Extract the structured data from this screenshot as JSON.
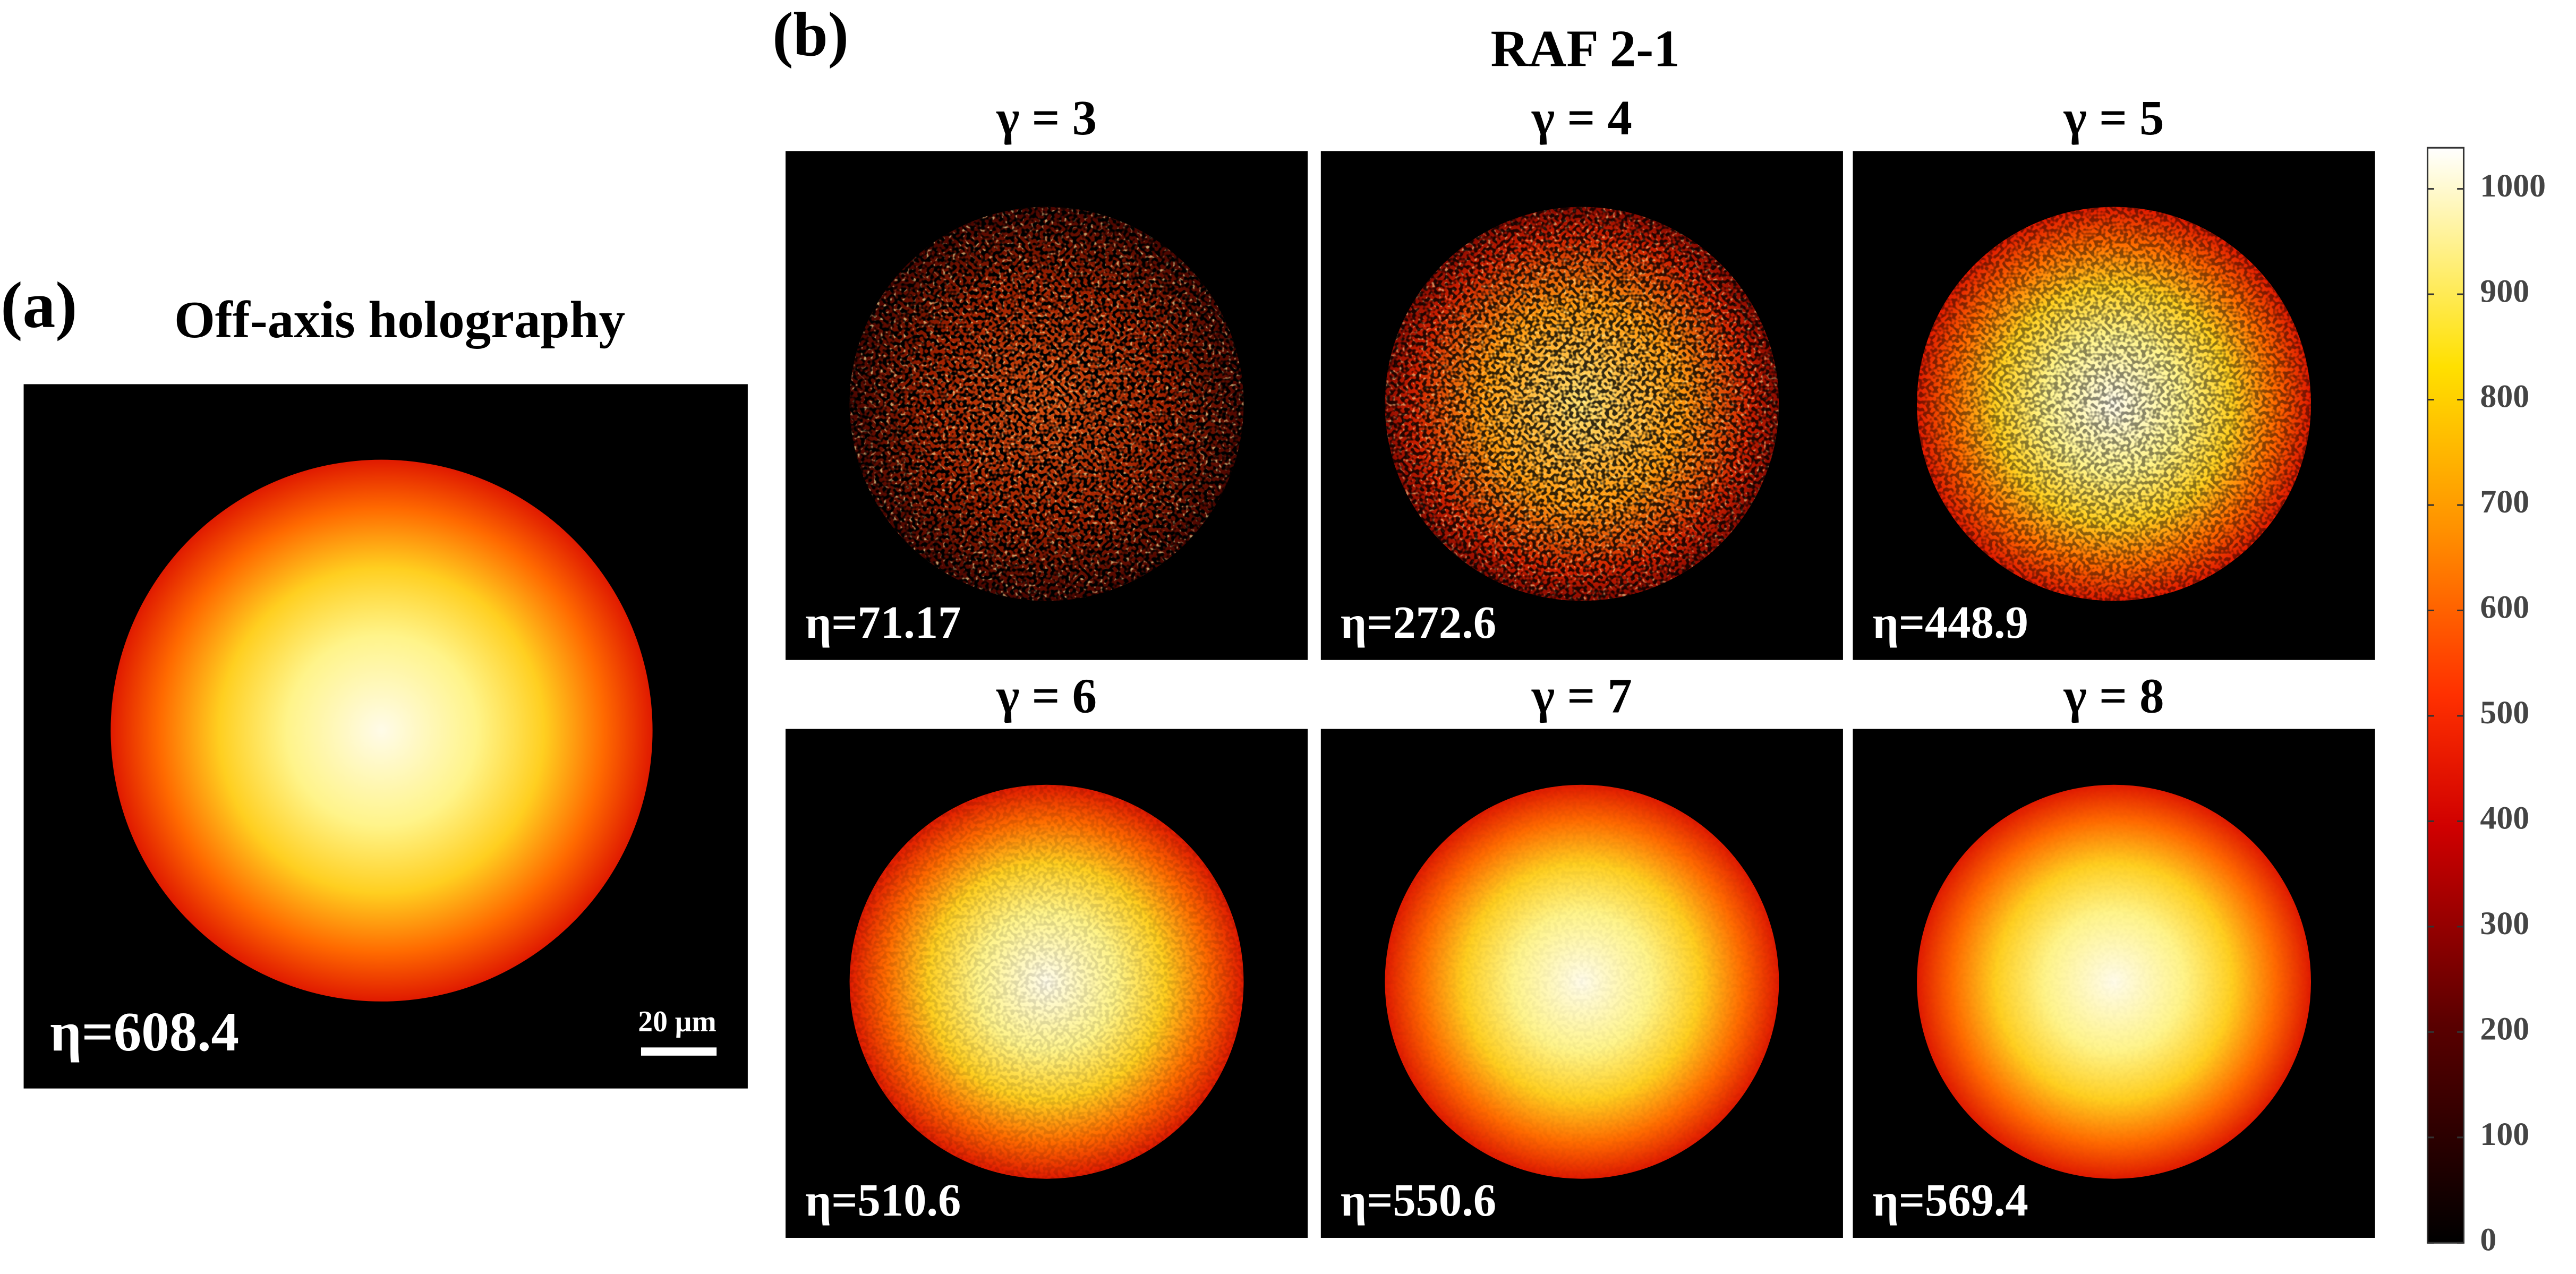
{
  "panel_a": {
    "label": "(a)",
    "title": "Off-axis holography",
    "eta": "η=608.4",
    "scalebar": "20 μm"
  },
  "panel_b": {
    "label": "(b)",
    "title": "RAF 2-1",
    "panels": [
      {
        "title": "γ = 3",
        "eta": "η=71.17"
      },
      {
        "title": "γ = 4",
        "eta": "η=272.6"
      },
      {
        "title": "γ = 5",
        "eta": "η=448.9"
      },
      {
        "title": "γ = 6",
        "eta": "η=510.6"
      },
      {
        "title": "γ = 7",
        "eta": "η=550.6"
      },
      {
        "title": "γ = 8",
        "eta": "η=569.4"
      }
    ]
  },
  "colorbar": {
    "range": [
      0,
      1039
    ],
    "ticks": [
      0,
      100,
      200,
      300,
      400,
      500,
      600,
      700,
      800,
      900,
      1000
    ]
  }
}
